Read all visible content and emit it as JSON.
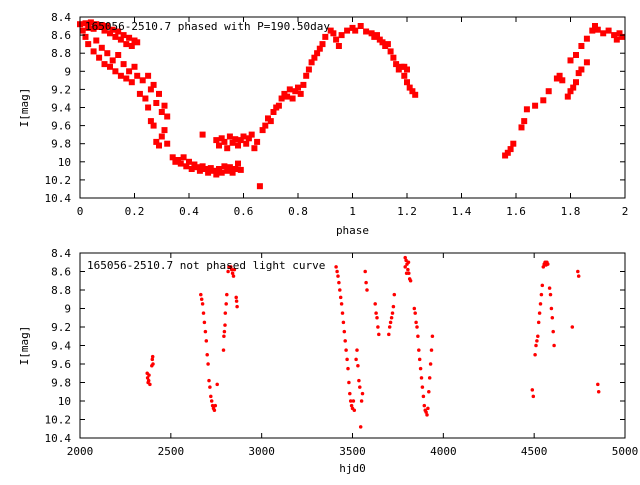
{
  "chart_data": [
    {
      "type": "scatter",
      "title": "165056-2510.7 phased with P=190.50day",
      "xlabel": "phase",
      "ylabel": "I[mag]",
      "xlim": [
        0,
        2
      ],
      "ylim": [
        10.4,
        8.4
      ],
      "y_inverted": true,
      "grid": false,
      "legend": "none",
      "marker_color": "#ff0000",
      "x_ticks": [
        "0",
        "0.2",
        "0.4",
        "0.6",
        "0.8",
        "1",
        "1.2",
        "1.4",
        "1.6",
        "1.8",
        "2"
      ],
      "y_ticks": [
        "8.4",
        "8.6",
        "8.8",
        "9",
        "9.2",
        "9.4",
        "9.6",
        "9.8",
        "10",
        "10.2",
        "10.4"
      ],
      "points": [
        [
          0.0,
          8.48
        ],
        [
          0.01,
          8.55
        ],
        [
          0.02,
          8.47
        ],
        [
          0.03,
          8.52
        ],
        [
          0.04,
          8.46
        ],
        [
          0.05,
          8.53
        ],
        [
          0.06,
          8.48
        ],
        [
          0.07,
          8.51
        ],
        [
          0.08,
          8.49
        ],
        [
          0.09,
          8.55
        ],
        [
          0.1,
          8.5
        ],
        [
          0.11,
          8.58
        ],
        [
          0.12,
          8.54
        ],
        [
          0.13,
          8.62
        ],
        [
          0.14,
          8.56
        ],
        [
          0.15,
          8.65
        ],
        [
          0.16,
          8.6
        ],
        [
          0.17,
          8.7
        ],
        [
          0.18,
          8.63
        ],
        [
          0.19,
          8.72
        ],
        [
          0.2,
          8.66
        ],
        [
          0.21,
          8.68
        ],
        [
          0.02,
          8.62
        ],
        [
          0.03,
          8.7
        ],
        [
          0.05,
          8.78
        ],
        [
          0.06,
          8.66
        ],
        [
          0.07,
          8.85
        ],
        [
          0.08,
          8.74
        ],
        [
          0.09,
          8.92
        ],
        [
          0.1,
          8.8
        ],
        [
          0.11,
          8.95
        ],
        [
          0.12,
          8.88
        ],
        [
          0.13,
          9.0
        ],
        [
          0.14,
          8.82
        ],
        [
          0.15,
          9.05
        ],
        [
          0.16,
          8.92
        ],
        [
          0.17,
          9.08
        ],
        [
          0.18,
          9.0
        ],
        [
          0.19,
          9.12
        ],
        [
          0.2,
          8.95
        ],
        [
          0.21,
          9.05
        ],
        [
          0.22,
          9.25
        ],
        [
          0.23,
          9.1
        ],
        [
          0.24,
          9.3
        ],
        [
          0.25,
          9.05
        ],
        [
          0.26,
          9.2
        ],
        [
          0.27,
          9.15
        ],
        [
          0.28,
          9.35
        ],
        [
          0.29,
          9.25
        ],
        [
          0.3,
          9.45
        ],
        [
          0.31,
          9.38
        ],
        [
          0.32,
          9.5
        ],
        [
          0.25,
          9.4
        ],
        [
          0.26,
          9.55
        ],
        [
          0.27,
          9.6
        ],
        [
          0.28,
          9.78
        ],
        [
          0.29,
          9.82
        ],
        [
          0.3,
          9.72
        ],
        [
          0.31,
          9.65
        ],
        [
          0.32,
          9.8
        ],
        [
          0.34,
          9.95
        ],
        [
          0.35,
          10.0
        ],
        [
          0.36,
          9.98
        ],
        [
          0.37,
          10.02
        ],
        [
          0.38,
          9.95
        ],
        [
          0.39,
          10.05
        ],
        [
          0.4,
          10.0
        ],
        [
          0.41,
          10.08
        ],
        [
          0.42,
          10.03
        ],
        [
          0.43,
          10.06
        ],
        [
          0.44,
          10.1
        ],
        [
          0.45,
          10.05
        ],
        [
          0.46,
          10.08
        ],
        [
          0.47,
          10.12
        ],
        [
          0.48,
          10.07
        ],
        [
          0.49,
          10.1
        ],
        [
          0.5,
          10.14
        ],
        [
          0.51,
          10.08
        ],
        [
          0.52,
          10.12
        ],
        [
          0.53,
          10.05
        ],
        [
          0.54,
          10.1
        ],
        [
          0.55,
          10.06
        ],
        [
          0.56,
          10.12
        ],
        [
          0.57,
          10.08
        ],
        [
          0.58,
          10.02
        ],
        [
          0.59,
          10.09
        ],
        [
          0.45,
          9.7
        ],
        [
          0.5,
          9.76
        ],
        [
          0.51,
          9.82
        ],
        [
          0.52,
          9.74
        ],
        [
          0.53,
          9.78
        ],
        [
          0.54,
          9.85
        ],
        [
          0.55,
          9.72
        ],
        [
          0.56,
          9.79
        ],
        [
          0.57,
          9.75
        ],
        [
          0.58,
          9.82
        ],
        [
          0.59,
          9.76
        ],
        [
          0.6,
          9.72
        ],
        [
          0.61,
          9.8
        ],
        [
          0.62,
          9.74
        ],
        [
          0.63,
          9.7
        ],
        [
          0.64,
          9.85
        ],
        [
          0.65,
          9.78
        ],
        [
          0.66,
          10.27
        ],
        [
          0.67,
          9.65
        ],
        [
          0.68,
          9.6
        ],
        [
          0.69,
          9.52
        ],
        [
          0.7,
          9.55
        ],
        [
          0.71,
          9.45
        ],
        [
          0.72,
          9.4
        ],
        [
          0.73,
          9.38
        ],
        [
          0.74,
          9.3
        ],
        [
          0.75,
          9.25
        ],
        [
          0.76,
          9.28
        ],
        [
          0.77,
          9.2
        ],
        [
          0.78,
          9.3
        ],
        [
          0.79,
          9.22
        ],
        [
          0.8,
          9.18
        ],
        [
          0.81,
          9.25
        ],
        [
          0.82,
          9.15
        ],
        [
          0.83,
          9.05
        ],
        [
          0.84,
          8.98
        ],
        [
          0.85,
          8.9
        ],
        [
          0.86,
          8.85
        ],
        [
          0.87,
          8.8
        ],
        [
          0.88,
          8.75
        ],
        [
          0.89,
          8.7
        ],
        [
          0.9,
          8.62
        ],
        [
          0.92,
          8.55
        ],
        [
          0.93,
          8.58
        ],
        [
          0.94,
          8.65
        ],
        [
          0.95,
          8.72
        ],
        [
          0.96,
          8.6
        ],
        [
          0.98,
          8.55
        ],
        [
          1.0,
          8.52
        ],
        [
          1.01,
          8.55
        ],
        [
          1.03,
          8.5
        ],
        [
          1.05,
          8.56
        ],
        [
          1.07,
          8.58
        ],
        [
          1.08,
          8.62
        ],
        [
          1.09,
          8.6
        ],
        [
          1.1,
          8.65
        ],
        [
          1.11,
          8.68
        ],
        [
          1.12,
          8.72
        ],
        [
          1.13,
          8.7
        ],
        [
          1.14,
          8.78
        ],
        [
          1.15,
          8.85
        ],
        [
          1.16,
          8.92
        ],
        [
          1.17,
          8.98
        ],
        [
          1.18,
          8.95
        ],
        [
          1.19,
          9.05
        ],
        [
          1.2,
          9.12
        ],
        [
          1.21,
          9.18
        ],
        [
          1.22,
          9.22
        ],
        [
          1.23,
          9.26
        ],
        [
          1.19,
          8.95
        ],
        [
          1.2,
          8.98
        ],
        [
          1.56,
          9.93
        ],
        [
          1.57,
          9.9
        ],
        [
          1.58,
          9.86
        ],
        [
          1.59,
          9.8
        ],
        [
          1.62,
          9.62
        ],
        [
          1.63,
          9.55
        ],
        [
          1.64,
          9.42
        ],
        [
          1.67,
          9.38
        ],
        [
          1.7,
          9.32
        ],
        [
          1.72,
          9.22
        ],
        [
          1.75,
          9.08
        ],
        [
          1.76,
          9.05
        ],
        [
          1.77,
          9.1
        ],
        [
          1.79,
          9.28
        ],
        [
          1.8,
          9.22
        ],
        [
          1.81,
          9.18
        ],
        [
          1.82,
          9.12
        ],
        [
          1.83,
          9.02
        ],
        [
          1.84,
          8.98
        ],
        [
          1.86,
          8.9
        ],
        [
          1.8,
          8.88
        ],
        [
          1.82,
          8.82
        ],
        [
          1.84,
          8.72
        ],
        [
          1.86,
          8.64
        ],
        [
          1.88,
          8.55
        ],
        [
          1.89,
          8.5
        ],
        [
          1.9,
          8.54
        ],
        [
          1.92,
          8.58
        ],
        [
          1.94,
          8.55
        ],
        [
          1.96,
          8.6
        ],
        [
          1.97,
          8.65
        ],
        [
          1.98,
          8.58
        ],
        [
          1.99,
          8.62
        ]
      ]
    },
    {
      "type": "scatter",
      "title": "165056-2510.7 not phased light curve",
      "xlabel": "hjd0",
      "ylabel": "I[mag]",
      "xlim": [
        2000,
        5000
      ],
      "ylim": [
        10.4,
        8.4
      ],
      "y_inverted": true,
      "grid": false,
      "legend": "none",
      "marker_color": "#ff0000",
      "x_ticks": [
        "2000",
        "2500",
        "3000",
        "3500",
        "4000",
        "4500",
        "5000"
      ],
      "y_ticks": [
        "8.4",
        "8.6",
        "8.8",
        "9",
        "9.2",
        "9.4",
        "9.6",
        "9.8",
        "10",
        "10.2",
        "10.4"
      ],
      "points": [
        [
          2370,
          9.7
        ],
        [
          2372,
          9.75
        ],
        [
          2375,
          9.8
        ],
        [
          2378,
          9.78
        ],
        [
          2380,
          9.72
        ],
        [
          2385,
          9.82
        ],
        [
          2395,
          9.62
        ],
        [
          2398,
          9.55
        ],
        [
          2400,
          9.52
        ],
        [
          2402,
          9.6
        ],
        [
          2665,
          8.85
        ],
        [
          2670,
          8.9
        ],
        [
          2675,
          8.95
        ],
        [
          2680,
          9.05
        ],
        [
          2685,
          9.15
        ],
        [
          2690,
          9.25
        ],
        [
          2695,
          9.35
        ],
        [
          2700,
          9.5
        ],
        [
          2705,
          9.6
        ],
        [
          2710,
          9.78
        ],
        [
          2715,
          9.85
        ],
        [
          2720,
          9.95
        ],
        [
          2725,
          10.0
        ],
        [
          2730,
          10.05
        ],
        [
          2735,
          10.08
        ],
        [
          2740,
          10.1
        ],
        [
          2745,
          10.05
        ],
        [
          2755,
          9.82
        ],
        [
          2790,
          9.45
        ],
        [
          2792,
          9.3
        ],
        [
          2795,
          9.25
        ],
        [
          2798,
          9.18
        ],
        [
          2800,
          9.05
        ],
        [
          2805,
          8.95
        ],
        [
          2808,
          8.85
        ],
        [
          2815,
          8.6
        ],
        [
          2820,
          8.55
        ],
        [
          2830,
          8.55
        ],
        [
          2835,
          8.58
        ],
        [
          2840,
          8.62
        ],
        [
          2845,
          8.65
        ],
        [
          2850,
          8.58
        ],
        [
          2860,
          8.88
        ],
        [
          2862,
          8.92
        ],
        [
          2865,
          8.98
        ],
        [
          3410,
          8.55
        ],
        [
          3415,
          8.6
        ],
        [
          3420,
          8.65
        ],
        [
          3425,
          8.72
        ],
        [
          3430,
          8.8
        ],
        [
          3435,
          8.88
        ],
        [
          3440,
          8.95
        ],
        [
          3445,
          9.05
        ],
        [
          3450,
          9.15
        ],
        [
          3455,
          9.25
        ],
        [
          3460,
          9.35
        ],
        [
          3465,
          9.45
        ],
        [
          3470,
          9.55
        ],
        [
          3475,
          9.65
        ],
        [
          3480,
          9.8
        ],
        [
          3485,
          9.92
        ],
        [
          3490,
          10.0
        ],
        [
          3495,
          10.05
        ],
        [
          3500,
          10.08
        ],
        [
          3505,
          10.0
        ],
        [
          3510,
          10.1
        ],
        [
          3520,
          9.55
        ],
        [
          3525,
          9.45
        ],
        [
          3530,
          9.62
        ],
        [
          3535,
          9.78
        ],
        [
          3540,
          9.85
        ],
        [
          3545,
          10.28
        ],
        [
          3550,
          10.0
        ],
        [
          3555,
          9.92
        ],
        [
          3570,
          8.6
        ],
        [
          3575,
          8.72
        ],
        [
          3580,
          8.8
        ],
        [
          3625,
          8.95
        ],
        [
          3630,
          9.05
        ],
        [
          3635,
          9.1
        ],
        [
          3640,
          9.2
        ],
        [
          3645,
          9.28
        ],
        [
          3700,
          9.28
        ],
        [
          3705,
          9.2
        ],
        [
          3710,
          9.15
        ],
        [
          3715,
          9.1
        ],
        [
          3720,
          9.05
        ],
        [
          3725,
          8.98
        ],
        [
          3730,
          8.85
        ],
        [
          3790,
          8.45
        ],
        [
          3795,
          8.48
        ],
        [
          3800,
          8.52
        ],
        [
          3805,
          8.58
        ],
        [
          3810,
          8.62
        ],
        [
          3815,
          8.68
        ],
        [
          3820,
          8.7
        ],
        [
          3790,
          8.55
        ],
        [
          3798,
          8.62
        ],
        [
          3808,
          8.5
        ],
        [
          3840,
          9.0
        ],
        [
          3845,
          9.05
        ],
        [
          3850,
          9.15
        ],
        [
          3855,
          9.2
        ],
        [
          3860,
          9.3
        ],
        [
          3865,
          9.45
        ],
        [
          3870,
          9.55
        ],
        [
          3875,
          9.65
        ],
        [
          3880,
          9.75
        ],
        [
          3885,
          9.85
        ],
        [
          3890,
          9.95
        ],
        [
          3895,
          10.05
        ],
        [
          3900,
          10.1
        ],
        [
          3905,
          10.12
        ],
        [
          3910,
          10.15
        ],
        [
          3915,
          10.08
        ],
        [
          3920,
          9.9
        ],
        [
          3925,
          9.75
        ],
        [
          3930,
          9.6
        ],
        [
          3935,
          9.45
        ],
        [
          3940,
          9.3
        ],
        [
          4490,
          9.88
        ],
        [
          4495,
          9.95
        ],
        [
          4505,
          9.5
        ],
        [
          4510,
          9.4
        ],
        [
          4515,
          9.35
        ],
        [
          4520,
          9.3
        ],
        [
          4525,
          9.15
        ],
        [
          4530,
          9.05
        ],
        [
          4535,
          8.95
        ],
        [
          4540,
          8.85
        ],
        [
          4545,
          8.75
        ],
        [
          4550,
          8.55
        ],
        [
          4555,
          8.52
        ],
        [
          4560,
          8.5
        ],
        [
          4565,
          8.53
        ],
        [
          4570,
          8.5
        ],
        [
          4575,
          8.52
        ],
        [
          4585,
          8.78
        ],
        [
          4590,
          8.85
        ],
        [
          4595,
          9.0
        ],
        [
          4600,
          9.1
        ],
        [
          4605,
          9.25
        ],
        [
          4610,
          9.4
        ],
        [
          4710,
          9.2
        ],
        [
          4740,
          8.6
        ],
        [
          4745,
          8.65
        ],
        [
          4850,
          9.82
        ],
        [
          4855,
          9.9
        ]
      ]
    }
  ]
}
